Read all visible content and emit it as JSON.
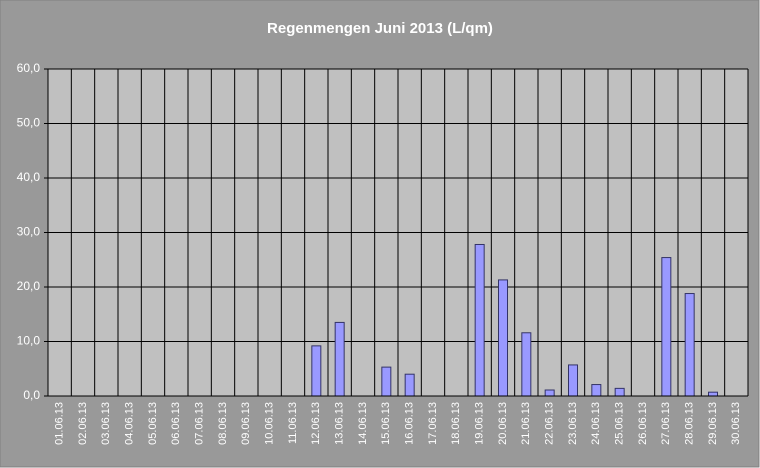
{
  "chart_data": {
    "type": "bar",
    "title": "Regenmengen Juni 2013 (L/qm)",
    "categories": [
      "01.06.13",
      "02.06.13",
      "03.06.13",
      "04.06.13",
      "05.06.13",
      "06.06.13",
      "07.06.13",
      "08.06.13",
      "09.06.13",
      "10.06.13",
      "11.06.13",
      "12.06.13",
      "13.06.13",
      "14.06.13",
      "15.06.13",
      "16.06.13",
      "17.06.13",
      "18.06.13",
      "19.06.13",
      "20.06.13",
      "21.06.13",
      "22.06.13",
      "23.06.13",
      "24.06.13",
      "25.06.13",
      "26.06.13",
      "27.06.13",
      "28.06.13",
      "29.06.13",
      "30.06.13"
    ],
    "values": [
      0,
      0,
      0,
      0,
      0,
      0,
      0,
      0,
      0,
      0,
      0,
      9.2,
      13.5,
      0,
      5.3,
      4.0,
      0,
      0,
      27.8,
      21.3,
      11.6,
      1.1,
      5.7,
      2.1,
      1.4,
      0,
      25.4,
      18.8,
      0.7,
      0
    ],
    "color": "#9999ff",
    "ylim": [
      0,
      60
    ],
    "yticks": [
      {
        "value": 0,
        "label": "0,0"
      },
      {
        "value": 10,
        "label": "10,0"
      },
      {
        "value": 20,
        "label": "20,0"
      },
      {
        "value": 30,
        "label": "30,0"
      },
      {
        "value": 40,
        "label": "40,0"
      },
      {
        "value": 50,
        "label": "50,0"
      },
      {
        "value": 60,
        "label": "60,0"
      }
    ],
    "grid": true
  }
}
